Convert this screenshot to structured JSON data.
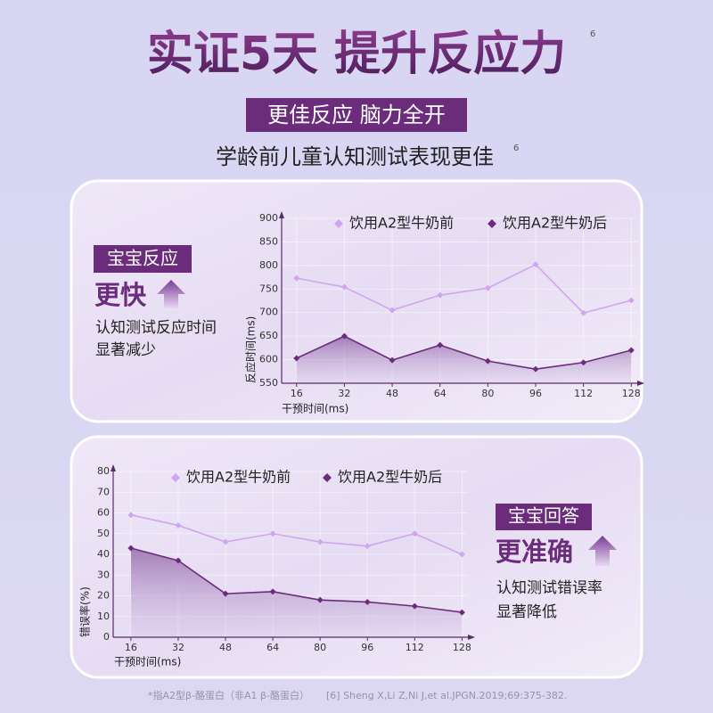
{
  "header": {
    "title": "实证5天 提升反应力",
    "title_note": "6",
    "banner": "更佳反应 脑力全开",
    "subtitle": "学龄前儿童认知测试表现更佳",
    "subtitle_note": "6"
  },
  "panels": [
    {
      "tag": "宝宝反应",
      "headline": "更快",
      "lines": [
        "认知测试反应时间",
        "显著减少"
      ]
    },
    {
      "tag": "宝宝回答",
      "headline": "更准确",
      "lines": [
        "认知测试错误率",
        "显著降低"
      ]
    }
  ],
  "chart_data": [
    {
      "type": "line",
      "x": [
        16,
        32,
        48,
        64,
        80,
        96,
        112,
        128
      ],
      "xlim": [
        11,
        130
      ],
      "xticks": [
        16,
        32,
        48,
        64,
        80,
        96,
        112,
        128
      ],
      "ylim": [
        550,
        900
      ],
      "yticks": [
        550,
        600,
        650,
        700,
        750,
        800,
        850,
        900
      ],
      "grid": true,
      "legend": "top-right",
      "xlabel": "干预时间(ms)",
      "ylabel": "反应时间(ms)",
      "series": [
        {
          "name": "饮用A2型牛奶前",
          "color": "#d0a6ee",
          "values": [
            773,
            754,
            705,
            737,
            752,
            802,
            699,
            726
          ]
        },
        {
          "name": "饮用A2型牛奶后",
          "color": "#6b2d7b",
          "values": [
            603,
            650,
            599,
            631,
            597,
            580,
            594,
            620
          ]
        }
      ]
    },
    {
      "type": "line",
      "x": [
        16,
        32,
        48,
        64,
        80,
        96,
        112,
        128
      ],
      "xlim": [
        10,
        130
      ],
      "xticks": [
        16,
        32,
        48,
        64,
        80,
        96,
        112,
        128
      ],
      "ylim": [
        0,
        80
      ],
      "yticks": [
        0,
        10,
        20,
        30,
        40,
        50,
        60,
        70,
        80
      ],
      "grid": true,
      "legend": "top",
      "xlabel": "干预时间(ms)",
      "ylabel": "错误率(%)",
      "series": [
        {
          "name": "饮用A2型牛奶前",
          "color": "#d0a6ee",
          "values": [
            59,
            54,
            46,
            50,
            46,
            44,
            50,
            40
          ]
        },
        {
          "name": "饮用A2型牛奶后",
          "color": "#6b2d7b",
          "values": [
            43,
            37,
            21,
            22,
            18,
            17,
            15,
            12
          ]
        }
      ]
    }
  ],
  "footer": {
    "note": "*指A2型β-酪蛋白（非A1 β-酪蛋白）",
    "reference": "[6] Sheng X,Li Z,Ni J,et al.JPGN.2019;69:375-382."
  }
}
